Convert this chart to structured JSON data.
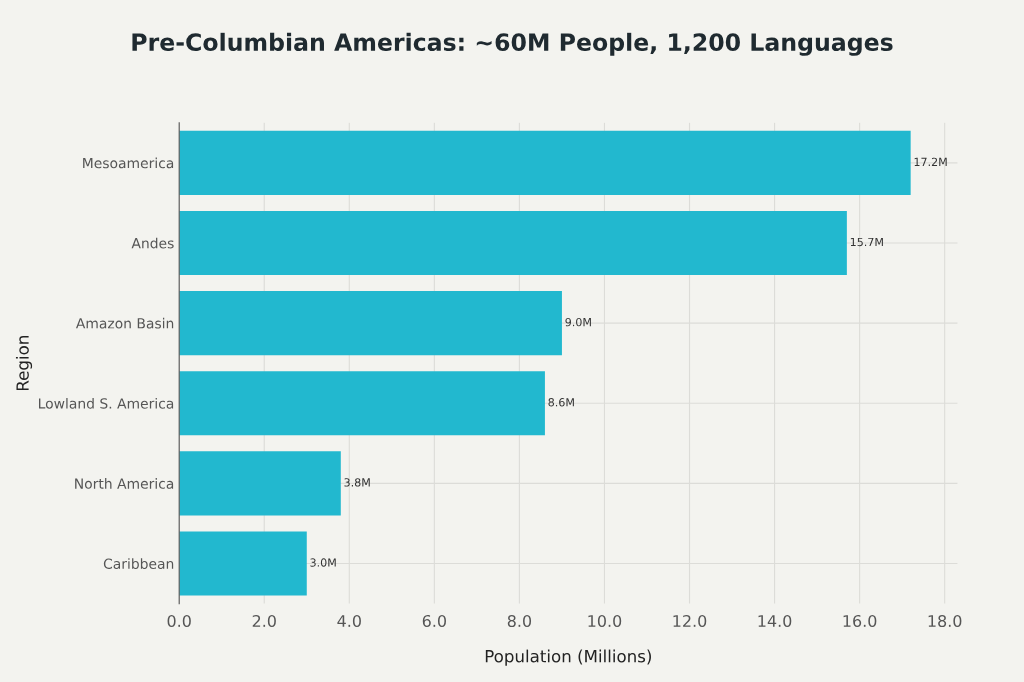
{
  "chart_data": {
    "type": "bar",
    "orientation": "horizontal",
    "title": "Pre-Columbian Americas: ~60M People, 1,200 Languages",
    "xlabel": "Population (Millions)",
    "ylabel": "Region",
    "categories": [
      "Mesoamerica",
      "Andes",
      "Amazon Basin",
      "Lowland S. America",
      "North America",
      "Caribbean"
    ],
    "values": [
      17.2,
      15.7,
      9.0,
      8.6,
      3.8,
      3.0
    ],
    "value_labels": [
      "17.2M",
      "15.7M",
      "9.0M",
      "8.6M",
      "3.8M",
      "3.0M"
    ],
    "color": "#22b8cf",
    "xlim": [
      0,
      18.3
    ],
    "xticks": [
      {
        "value": 0,
        "label": "0.0"
      },
      {
        "value": 2,
        "label": "2.0"
      },
      {
        "value": 4,
        "label": "4.0"
      },
      {
        "value": 6,
        "label": "6.0"
      },
      {
        "value": 8,
        "label": "8.0"
      },
      {
        "value": 10,
        "label": "10.0"
      },
      {
        "value": 12,
        "label": "12.0"
      },
      {
        "value": 14,
        "label": "14.0"
      },
      {
        "value": 16,
        "label": "16.0"
      },
      {
        "value": 18,
        "label": "18.0"
      }
    ],
    "grid": true
  }
}
